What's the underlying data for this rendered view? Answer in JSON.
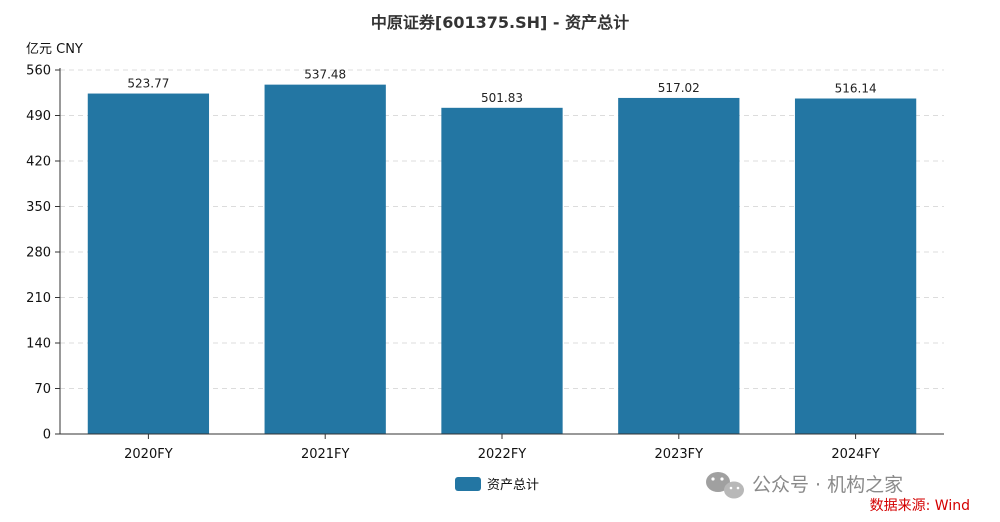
{
  "chart_data": {
    "type": "bar",
    "title": "中原证券[601375.SH] - 资产总计",
    "ylabel": "亿元  CNY",
    "xlabel": "",
    "categories": [
      "2020FY",
      "2021FY",
      "2022FY",
      "2023FY",
      "2024FY"
    ],
    "series": [
      {
        "name": "资产总计",
        "values": [
          523.77,
          537.48,
          501.83,
          517.02,
          516.14
        ],
        "color": "#2376a3"
      }
    ],
    "data_labels": [
      "523.77",
      "537.48",
      "501.83",
      "517.02",
      "516.14"
    ],
    "ylim": [
      0,
      560
    ],
    "yticks": [
      0,
      70,
      140,
      210,
      280,
      350,
      420,
      490,
      560
    ],
    "ytick_labels": [
      "0",
      "70",
      "140",
      "210",
      "280",
      "350",
      "420",
      "490",
      "560"
    ],
    "grid": true,
    "legend_position": "bottom-center"
  },
  "watermark": {
    "text": "公众号 · 机构之家",
    "icon": "wechat-icon"
  },
  "source_note": "数据来源: Wind"
}
